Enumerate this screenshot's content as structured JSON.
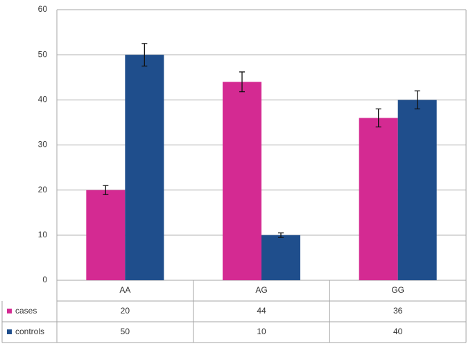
{
  "chart_data": {
    "type": "bar",
    "categories": [
      "AA",
      "AG",
      "GG"
    ],
    "series": [
      {
        "name": "cases",
        "color": "#d42a92",
        "values": [
          20,
          44,
          36
        ],
        "errors": [
          1,
          2.2,
          2
        ]
      },
      {
        "name": "controls",
        "color": "#1f4e8c",
        "values": [
          50,
          10,
          40
        ],
        "errors": [
          2.5,
          0.5,
          2
        ]
      }
    ],
    "ylim": [
      0,
      60
    ],
    "yticks": [
      0,
      10,
      20,
      30,
      40,
      50,
      60
    ],
    "grid": true,
    "data_table": true
  }
}
